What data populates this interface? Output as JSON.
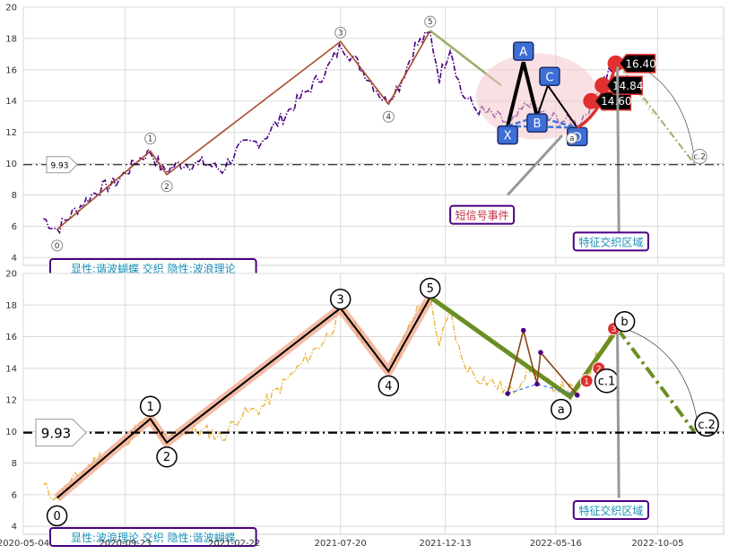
{
  "chart_data": [
    {
      "type": "line",
      "panel": "top",
      "ylim": [
        3.5,
        20
      ],
      "yticks": [
        4,
        6,
        8,
        10,
        12,
        14,
        16,
        18,
        20
      ],
      "price_series": {
        "color": "#4b0082",
        "style": "dash-dot",
        "points": [
          [
            "2020-06-01",
            6.5
          ],
          [
            "2020-06-20",
            5.8
          ],
          [
            "2020-07-15",
            7.0
          ],
          [
            "2020-08-15",
            8.3
          ],
          [
            "2020-09-10",
            8.8
          ],
          [
            "2020-10-10",
            10.2
          ],
          [
            "2020-10-28",
            10.8
          ],
          [
            "2020-11-15",
            9.5
          ],
          [
            "2020-12-10",
            10.0
          ],
          [
            "2021-01-15",
            10.0
          ],
          [
            "2021-02-05",
            9.6
          ],
          [
            "2021-03-01",
            11.0
          ],
          [
            "2021-04-01",
            11.5
          ],
          [
            "2021-05-01",
            13.0
          ],
          [
            "2021-06-01",
            14.5
          ],
          [
            "2021-07-01",
            16.0
          ],
          [
            "2021-07-22",
            17.6
          ],
          [
            "2021-08-20",
            16.0
          ],
          [
            "2021-09-20",
            14.0
          ],
          [
            "2021-10-10",
            15.0
          ],
          [
            "2021-11-01",
            17.5
          ],
          [
            "2021-11-22",
            18.3
          ],
          [
            "2021-12-05",
            15.5
          ],
          [
            "2021-12-20",
            17.5
          ],
          [
            "2022-01-05",
            14.5
          ],
          [
            "2022-01-25",
            13.5
          ],
          [
            "2022-02-20",
            13.0
          ],
          [
            "2022-03-15",
            12.5
          ],
          [
            "2022-04-10",
            14.0
          ],
          [
            "2022-05-01",
            13.0
          ],
          [
            "2022-05-25",
            12.8
          ],
          [
            "2022-06-15",
            12.5
          ],
          [
            "2022-06-28",
            13.3
          ],
          [
            "2022-07-15",
            15.0
          ],
          [
            "2022-08-05",
            16.3
          ]
        ]
      },
      "wave_points": [
        {
          "label": "0",
          "date": "2020-06-20",
          "value": 5.8
        },
        {
          "label": "1",
          "date": "2020-10-28",
          "value": 10.8
        },
        {
          "label": "2",
          "date": "2020-11-20",
          "value": 9.3
        },
        {
          "label": "3",
          "date": "2021-07-20",
          "value": 17.8
        },
        {
          "label": "4",
          "date": "2021-09-25",
          "value": 13.8
        },
        {
          "label": "5",
          "date": "2021-11-22",
          "value": 18.5
        },
        {
          "label": "a",
          "date": "2022-06-05",
          "value": 12.2
        },
        {
          "label": "c.2",
          "date": "2022-11-25",
          "value": 10.0
        }
      ],
      "harmonic_pattern": {
        "points": [
          {
            "label": "X",
            "date": "2022-03-10",
            "value": 12.4
          },
          {
            "label": "A",
            "date": "2022-04-01",
            "value": 16.5
          },
          {
            "label": "B",
            "date": "2022-04-20",
            "value": 13.0
          },
          {
            "label": "C",
            "date": "2022-05-05",
            "value": 15.0
          },
          {
            "label": "D",
            "date": "2022-06-15",
            "value": 12.3
          }
        ]
      },
      "level_line": {
        "value": 9.93,
        "label": "9.93"
      },
      "price_tags": [
        "14.60",
        "14.84",
        "16.40"
      ],
      "annotations": {
        "short_signal": "短信号事件",
        "feature_zone": "特征交织区域",
        "legend_box": "显性:谐波蝴蝶 交织 隐性:波浪理论"
      }
    },
    {
      "type": "line",
      "panel": "bottom",
      "ylim": [
        3.5,
        20
      ],
      "yticks": [
        4,
        6,
        8,
        10,
        12,
        14,
        16,
        18,
        20
      ],
      "xtick_labels": [
        "2020-05-04",
        "2020-09-23",
        "2021-02-22",
        "2021-07-20",
        "2021-12-13",
        "2022-05-16",
        "2022-10-05"
      ],
      "price_series": {
        "color": "#e8b030",
        "style": "dash-dot"
      },
      "wave_points": [
        {
          "label": "0",
          "date": "2020-06-20",
          "value": 5.8
        },
        {
          "label": "1",
          "date": "2020-10-28",
          "value": 10.8
        },
        {
          "label": "2",
          "date": "2020-11-20",
          "value": 9.3
        },
        {
          "label": "3",
          "date": "2021-07-20",
          "value": 17.8
        },
        {
          "label": "4",
          "date": "2021-09-25",
          "value": 13.8
        },
        {
          "label": "5",
          "date": "2021-11-22",
          "value": 18.5
        },
        {
          "label": "a",
          "date": "2022-06-05",
          "value": 12.2
        },
        {
          "label": "b",
          "date": "2022-08-10",
          "value": 16.5
        },
        {
          "label": "c.1",
          "date": "2022-08-05",
          "value": 14.0
        },
        {
          "label": "c.2",
          "date": "2022-11-25",
          "value": 10.0
        }
      ],
      "sub_wave_points": [
        {
          "label": "1",
          "date": "2022-06-28",
          "value": 13.2
        },
        {
          "label": "2",
          "date": "2022-07-15",
          "value": 14.0
        },
        {
          "label": "3",
          "date": "2022-08-05",
          "value": 16.5
        }
      ],
      "level_line": {
        "value": 9.93,
        "label": "9.93"
      },
      "annotations": {
        "feature_zone": "特征交织区域",
        "legend_box": "显性:波浪理论 交织 隐性:谐波蝴蝶"
      }
    }
  ]
}
